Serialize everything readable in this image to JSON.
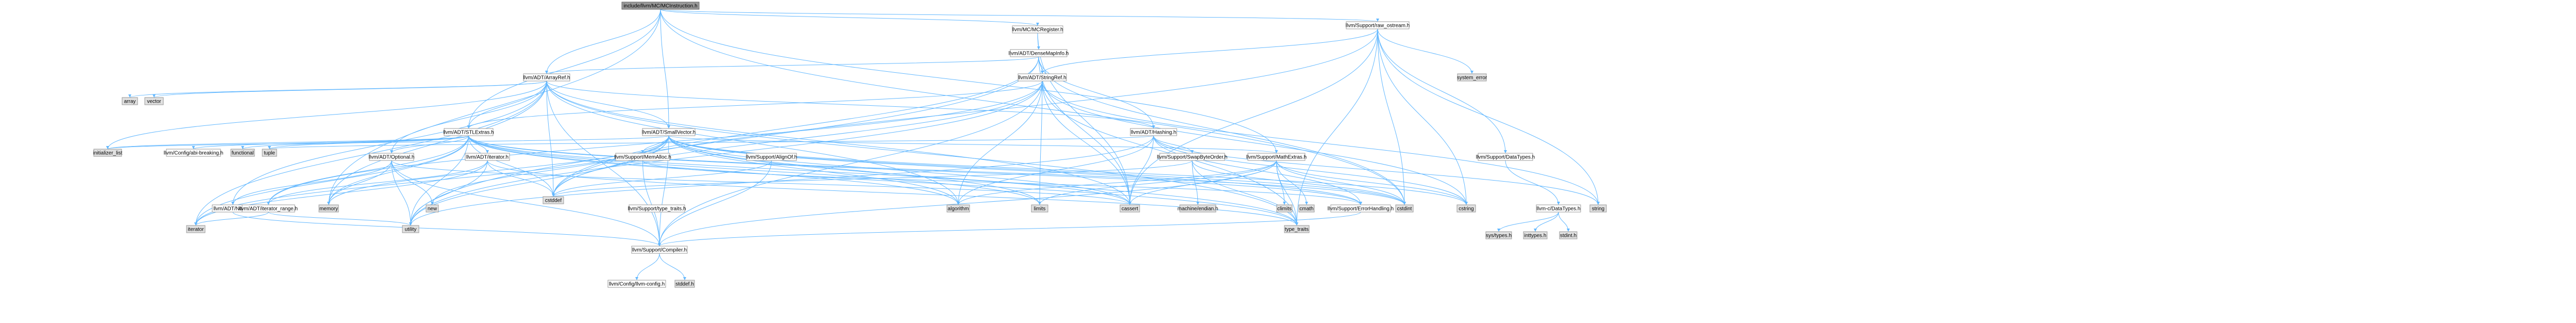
{
  "graph": {
    "colors": {
      "root_fill": "#999999",
      "node_fill": "#ffffff",
      "leaf_fill": "#e0e0e0",
      "edge": "#63b8ff"
    },
    "nodes": [
      {
        "id": "n_mcinst",
        "label": "include/llvm/MC/MCInstruction.h",
        "kind": "root"
      },
      {
        "id": "n_mcregister",
        "label": "llvm/MC/MCRegister.h",
        "kind": "normal"
      },
      {
        "id": "n_rawostream",
        "label": "llvm/Support/raw_ostream.h",
        "kind": "normal"
      },
      {
        "id": "n_densemapinfo",
        "label": "llvm/ADT/DenseMapInfo.h",
        "kind": "normal"
      },
      {
        "id": "n_arrayref",
        "label": "llvm/ADT/ArrayRef.h",
        "kind": "normal"
      },
      {
        "id": "n_stringref",
        "label": "llvm/ADT/StringRef.h",
        "kind": "normal"
      },
      {
        "id": "n_system_error",
        "label": "system_error",
        "kind": "leaf"
      },
      {
        "id": "n_array",
        "label": "array",
        "kind": "leaf"
      },
      {
        "id": "n_vector",
        "label": "vector",
        "kind": "leaf"
      },
      {
        "id": "n_stlextras",
        "label": "llvm/ADT/STLExtras.h",
        "kind": "normal"
      },
      {
        "id": "n_smallvector",
        "label": "llvm/ADT/SmallVector.h",
        "kind": "normal"
      },
      {
        "id": "n_hashing",
        "label": "llvm/ADT/Hashing.h",
        "kind": "normal"
      },
      {
        "id": "n_initlist",
        "label": "initializer_list",
        "kind": "leaf"
      },
      {
        "id": "n_abibreaking",
        "label": "llvm/Config/abi-breaking.h",
        "kind": "normal"
      },
      {
        "id": "n_functional",
        "label": "functional",
        "kind": "leaf"
      },
      {
        "id": "n_tuple",
        "label": "tuple",
        "kind": "leaf"
      },
      {
        "id": "n_optional",
        "label": "llvm/ADT/Optional.h",
        "kind": "normal"
      },
      {
        "id": "n_adtiterator",
        "label": "llvm/ADT/iterator.h",
        "kind": "normal"
      },
      {
        "id": "n_memalloc",
        "label": "llvm/Support/MemAlloc.h",
        "kind": "normal"
      },
      {
        "id": "n_alignof",
        "label": "llvm/Support/AlignOf.h",
        "kind": "normal"
      },
      {
        "id": "n_swapbyteorder",
        "label": "llvm/Support/SwapByteOrder.h",
        "kind": "normal"
      },
      {
        "id": "n_mathextras",
        "label": "llvm/Support/MathExtras.h",
        "kind": "normal"
      },
      {
        "id": "n_datatypes",
        "label": "llvm/Support/DataTypes.h",
        "kind": "normal"
      },
      {
        "id": "n_none",
        "label": "llvm/ADT/None.h",
        "kind": "normal"
      },
      {
        "id": "n_iterrange",
        "label": "llvm/ADT/iterator_range.h",
        "kind": "normal"
      },
      {
        "id": "n_memory",
        "label": "memory",
        "kind": "leaf"
      },
      {
        "id": "n_new",
        "label": "new",
        "kind": "leaf"
      },
      {
        "id": "n_cstddef",
        "label": "cstddef",
        "kind": "leaf"
      },
      {
        "id": "n_typetraits_h",
        "label": "llvm/Support/type_traits.h",
        "kind": "normal"
      },
      {
        "id": "n_errorhandling",
        "label": "llvm/Support/ErrorHandling.h",
        "kind": "normal"
      },
      {
        "id": "n_algorithm",
        "label": "algorithm",
        "kind": "leaf"
      },
      {
        "id": "n_limits",
        "label": "limits",
        "kind": "leaf"
      },
      {
        "id": "n_cassert",
        "label": "cassert",
        "kind": "leaf"
      },
      {
        "id": "n_machine_endian",
        "label": "machine/endian.h",
        "kind": "leaf"
      },
      {
        "id": "n_climits",
        "label": "climits",
        "kind": "leaf"
      },
      {
        "id": "n_cmath",
        "label": "cmath",
        "kind": "leaf"
      },
      {
        "id": "n_cstdint",
        "label": "cstdint",
        "kind": "leaf"
      },
      {
        "id": "n_cstring",
        "label": "cstring",
        "kind": "leaf"
      },
      {
        "id": "n_llvmc_datatypes",
        "label": "llvm-c/DataTypes.h",
        "kind": "normal"
      },
      {
        "id": "n_string",
        "label": "string",
        "kind": "leaf"
      },
      {
        "id": "n_iterator",
        "label": "iterator",
        "kind": "leaf"
      },
      {
        "id": "n_utility",
        "label": "utility",
        "kind": "leaf"
      },
      {
        "id": "n_compiler",
        "label": "llvm/Support/Compiler.h",
        "kind": "normal"
      },
      {
        "id": "n_type_traits",
        "label": "type_traits",
        "kind": "leaf"
      },
      {
        "id": "n_systypes",
        "label": "sys/types.h",
        "kind": "leaf"
      },
      {
        "id": "n_inttypes",
        "label": "inttypes.h",
        "kind": "leaf"
      },
      {
        "id": "n_stdint",
        "label": "stdint.h",
        "kind": "leaf"
      },
      {
        "id": "n_llvmconfig",
        "label": "llvm/Config/llvm-config.h",
        "kind": "normal"
      },
      {
        "id": "n_stddef",
        "label": "stddef.h",
        "kind": "leaf"
      }
    ],
    "edges": [
      [
        "n_mcinst",
        "n_mcregister"
      ],
      [
        "n_mcinst",
        "n_rawostream"
      ],
      [
        "n_mcinst",
        "n_arrayref"
      ],
      [
        "n_mcinst",
        "n_stlextras"
      ],
      [
        "n_mcinst",
        "n_smallvector"
      ],
      [
        "n_mcinst",
        "n_mathextras"
      ],
      [
        "n_mcinst",
        "n_memory"
      ],
      [
        "n_mcinst",
        "n_cstdint"
      ],
      [
        "n_mcregister",
        "n_densemapinfo"
      ],
      [
        "n_mcregister",
        "n_cassert"
      ],
      [
        "n_densemapinfo",
        "n_stringref"
      ],
      [
        "n_densemapinfo",
        "n_hashing"
      ],
      [
        "n_densemapinfo",
        "n_arrayref"
      ],
      [
        "n_densemapinfo",
        "n_cstddef"
      ],
      [
        "n_densemapinfo",
        "n_cassert"
      ],
      [
        "n_densemapinfo",
        "n_utility"
      ],
      [
        "n_densemapinfo",
        "n_cstdint"
      ],
      [
        "n_rawostream",
        "n_stringref"
      ],
      [
        "n_rawostream",
        "n_datatypes"
      ],
      [
        "n_rawostream",
        "n_system_error"
      ],
      [
        "n_rawostream",
        "n_cassert"
      ],
      [
        "n_rawostream",
        "n_cstddef"
      ],
      [
        "n_rawostream",
        "n_cstring"
      ],
      [
        "n_rawostream",
        "n_string"
      ],
      [
        "n_rawostream",
        "n_type_traits"
      ],
      [
        "n_rawostream",
        "n_cstdint"
      ],
      [
        "n_arrayref",
        "n_hashing"
      ],
      [
        "n_arrayref",
        "n_smallvector"
      ],
      [
        "n_arrayref",
        "n_stlextras"
      ],
      [
        "n_arrayref",
        "n_none"
      ],
      [
        "n_arrayref",
        "n_optional"
      ],
      [
        "n_arrayref",
        "n_compiler"
      ],
      [
        "n_arrayref",
        "n_algorithm"
      ],
      [
        "n_arrayref",
        "n_array"
      ],
      [
        "n_arrayref",
        "n_cassert"
      ],
      [
        "n_arrayref",
        "n_cstddef"
      ],
      [
        "n_arrayref",
        "n_initlist"
      ],
      [
        "n_arrayref",
        "n_iterator"
      ],
      [
        "n_arrayref",
        "n_memory"
      ],
      [
        "n_arrayref",
        "n_type_traits"
      ],
      [
        "n_arrayref",
        "n_vector"
      ],
      [
        "n_stringref",
        "n_stlextras"
      ],
      [
        "n_stringref",
        "n_iterrange"
      ],
      [
        "n_stringref",
        "n_compiler"
      ],
      [
        "n_stringref",
        "n_algorithm"
      ],
      [
        "n_stringref",
        "n_cassert"
      ],
      [
        "n_stringref",
        "n_cstddef"
      ],
      [
        "n_stringref",
        "n_cstring"
      ],
      [
        "n_stringref",
        "n_limits"
      ],
      [
        "n_stringref",
        "n_string"
      ],
      [
        "n_stringref",
        "n_type_traits"
      ],
      [
        "n_stringref",
        "n_utility"
      ],
      [
        "n_hashing",
        "n_errorhandling"
      ],
      [
        "n_hashing",
        "n_swapbyteorder"
      ],
      [
        "n_hashing",
        "n_type_traits_h"
      ],
      [
        "n_hashing",
        "n_algorithm"
      ],
      [
        "n_hashing",
        "n_cassert"
      ],
      [
        "n_hashing",
        "n_cstring"
      ],
      [
        "n_hashing",
        "n_string"
      ],
      [
        "n_hashing",
        "n_tuple"
      ],
      [
        "n_hashing",
        "n_utility"
      ],
      [
        "n_smallvector",
        "n_compiler"
      ],
      [
        "n_smallvector",
        "n_errorhandling"
      ],
      [
        "n_smallvector",
        "n_mathextras"
      ],
      [
        "n_smallvector",
        "n_memalloc"
      ],
      [
        "n_smallvector",
        "n_type_traits_h"
      ],
      [
        "n_smallvector",
        "n_algorithm"
      ],
      [
        "n_smallvector",
        "n_cassert"
      ],
      [
        "n_smallvector",
        "n_cstddef"
      ],
      [
        "n_smallvector",
        "n_cstdint"
      ],
      [
        "n_smallvector",
        "n_cstring"
      ],
      [
        "n_smallvector",
        "n_initlist"
      ],
      [
        "n_smallvector",
        "n_iterator"
      ],
      [
        "n_smallvector",
        "n_limits"
      ],
      [
        "n_smallvector",
        "n_memory"
      ],
      [
        "n_smallvector",
        "n_new"
      ],
      [
        "n_smallvector",
        "n_type_traits"
      ],
      [
        "n_smallvector",
        "n_utility"
      ],
      [
        "n_stlextras",
        "n_optional"
      ],
      [
        "n_stlextras",
        "n_adtiterator"
      ],
      [
        "n_stlextras",
        "n_iterrange"
      ],
      [
        "n_stlextras",
        "n_abibreaking"
      ],
      [
        "n_stlextras",
        "n_errorhandling"
      ],
      [
        "n_stlextras",
        "n_algorithm"
      ],
      [
        "n_stlextras",
        "n_cassert"
      ],
      [
        "n_stlextras",
        "n_cstddef"
      ],
      [
        "n_stlextras",
        "n_cstdint"
      ],
      [
        "n_stlextras",
        "n_cstdlib"
      ],
      [
        "n_stlextras",
        "n_functional"
      ],
      [
        "n_stlextras",
        "n_initlist"
      ],
      [
        "n_stlextras",
        "n_iterator"
      ],
      [
        "n_stlextras",
        "n_limits"
      ],
      [
        "n_stlextras",
        "n_memory"
      ],
      [
        "n_stlextras",
        "n_tuple"
      ],
      [
        "n_stlextras",
        "n_type_traits"
      ],
      [
        "n_stlextras",
        "n_utility"
      ],
      [
        "n_optional",
        "n_none"
      ],
      [
        "n_optional",
        "n_compiler"
      ],
      [
        "n_optional",
        "n_type_traits_h"
      ],
      [
        "n_optional",
        "n_cassert"
      ],
      [
        "n_optional",
        "n_memory"
      ],
      [
        "n_optional",
        "n_new"
      ],
      [
        "n_optional",
        "n_utility"
      ],
      [
        "n_adtiterator",
        "n_iterrange"
      ],
      [
        "n_adtiterator",
        "n_cstddef"
      ],
      [
        "n_adtiterator",
        "n_iterator"
      ],
      [
        "n_adtiterator",
        "n_type_traits"
      ],
      [
        "n_adtiterator",
        "n_utility"
      ],
      [
        "n_iterrange",
        "n_iterator"
      ],
      [
        "n_iterrange",
        "n_utility"
      ],
      [
        "n_memalloc",
        "n_compiler"
      ],
      [
        "n_memalloc",
        "n_errorhandling"
      ],
      [
        "n_memalloc",
        "n_cstdlib"
      ],
      [
        "n_alignof",
        "n_compiler"
      ],
      [
        "n_alignof",
        "n_cstddef"
      ],
      [
        "n_type_traits_h",
        "n_compiler"
      ],
      [
        "n_type_traits_h",
        "n_type_traits"
      ],
      [
        "n_type_traits_h",
        "n_utility"
      ],
      [
        "n_swapbyteorder",
        "n_cstddef"
      ],
      [
        "n_swapbyteorder",
        "n_cstdint"
      ],
      [
        "n_swapbyteorder",
        "n_type_traits"
      ],
      [
        "n_swapbyteorder",
        "n_machine_endian"
      ],
      [
        "n_mathextras",
        "n_compiler"
      ],
      [
        "n_mathextras",
        "n_algorithm"
      ],
      [
        "n_mathextras",
        "n_cassert"
      ],
      [
        "n_mathextras",
        "n_climits"
      ],
      [
        "n_mathextras",
        "n_cmath"
      ],
      [
        "n_mathextras",
        "n_cstdint"
      ],
      [
        "n_mathextras",
        "n_cstring"
      ],
      [
        "n_mathextras",
        "n_limits"
      ],
      [
        "n_mathextras",
        "n_type_traits"
      ],
      [
        "n_errorhandling",
        "n_compiler"
      ],
      [
        "n_datatypes",
        "n_llvmc_datatypes"
      ],
      [
        "n_llvmc_datatypes",
        "n_systypes"
      ],
      [
        "n_llvmc_datatypes",
        "n_inttypes"
      ],
      [
        "n_llvmc_datatypes",
        "n_stdint"
      ],
      [
        "n_compiler",
        "n_llvmconfig"
      ],
      [
        "n_compiler",
        "n_stddef"
      ],
      [
        "n_none",
        "n_compiler"
      ]
    ]
  }
}
